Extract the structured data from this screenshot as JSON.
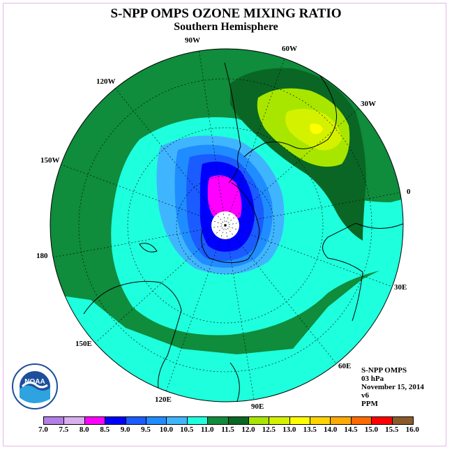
{
  "title": "S-NPP OMPS OZONE MIXING RATIO",
  "subtitle": "Southern Hemisphere",
  "longitude_labels": [
    "90W",
    "60W",
    "120W",
    "30W",
    "150W",
    "0",
    "180",
    "30E",
    "150E",
    "60E",
    "120E",
    "90E"
  ],
  "info": {
    "instrument": "S-NPP OMPS",
    "level": "03 hPa",
    "date": "November 15, 2014",
    "version": "v6",
    "units": "PPM"
  },
  "colorbar": {
    "ticks": [
      "7.0",
      "7.5",
      "8.0",
      "8.5",
      "9.0",
      "9.5",
      "10.0",
      "10.5",
      "11.0",
      "11.5",
      "12.0",
      "12.5",
      "13.0",
      "13.5",
      "14.0",
      "14.5",
      "15.0",
      "15.5",
      "16.0"
    ],
    "colors": [
      "#b37fe6",
      "#d8b0f0",
      "#ff00ff",
      "#0000ff",
      "#1a5cff",
      "#1f8cff",
      "#3fb5ff",
      "#1effdd",
      "#0f8c3c",
      "#0a6624",
      "#a8e600",
      "#d4f200",
      "#ffff00",
      "#ffd400",
      "#ffaa00",
      "#ff6a00",
      "#ff0000",
      "#8b5a2b"
    ]
  },
  "logo_text": "NOAA"
}
